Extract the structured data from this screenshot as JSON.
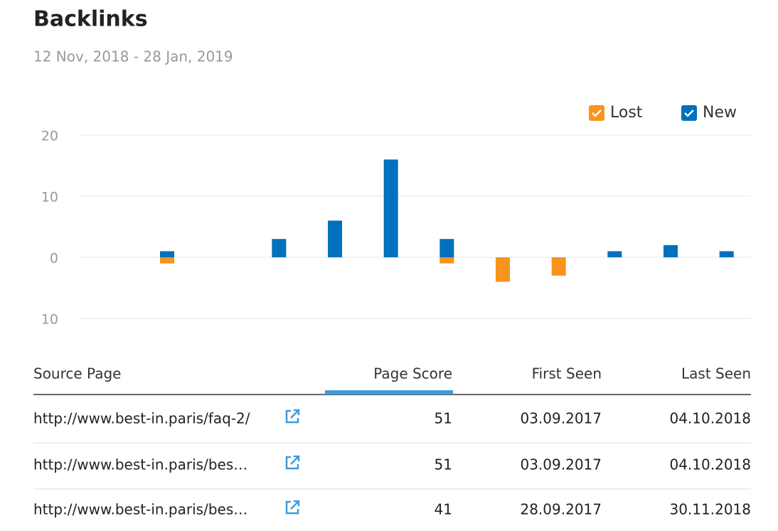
{
  "header": {
    "title": "Backlinks",
    "subtitle": "12 Nov, 2018 - 28 Jan, 2019"
  },
  "chart_data": {
    "type": "bar",
    "categories": [
      null,
      null,
      null,
      null,
      null,
      null,
      null,
      null,
      null,
      null,
      null,
      null
    ],
    "series": [
      {
        "name": "Lost",
        "color": "#f7941d",
        "values": [
          0,
          -1,
          0,
          0,
          0,
          0,
          -1,
          -4,
          -3,
          0,
          0,
          0
        ]
      },
      {
        "name": "New",
        "color": "#0071bc",
        "values": [
          0,
          1,
          0,
          3,
          6,
          16,
          3,
          0,
          0,
          1,
          2,
          1
        ]
      }
    ],
    "ylim": [
      -10,
      20
    ],
    "yticks": [
      20,
      10,
      0,
      {
        "value": -10,
        "label": "10"
      }
    ],
    "grid": true,
    "legend": "top-right"
  },
  "table": {
    "columns": [
      "Source Page",
      "Page Score",
      "First Seen",
      "Last Seen"
    ],
    "sorted_column": 1,
    "rows": [
      [
        "http://www.best-in.paris/faq-2/",
        "51",
        "03.09.2017",
        "04.10.2018"
      ],
      [
        "http://www.best-in.paris/bes…",
        "51",
        "03.09.2017",
        "04.10.2018"
      ],
      [
        "http://www.best-in.paris/bes…",
        "41",
        "28.09.2017",
        "30.11.2018"
      ]
    ]
  }
}
